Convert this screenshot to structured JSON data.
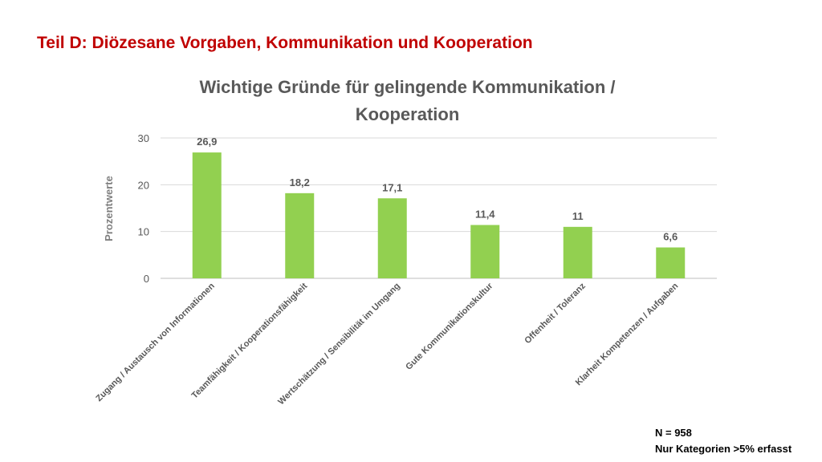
{
  "slide_title": "Teil D: Diözesane Vorgaben, Kommunikation und Kooperation",
  "chart_data": {
    "type": "bar",
    "title_line1": "Wichtige Gründe für gelingende Kommunikation /",
    "title_line2": "Kooperation",
    "ylabel": "Prozentwerte",
    "xlabel": "",
    "ylim": [
      0,
      30
    ],
    "yticks": [
      0,
      10,
      20,
      30
    ],
    "grid": true,
    "bar_color": "#92d050",
    "categories": [
      "Zugang / Austausch von Informationen",
      "Teamfähigkeit / Kooperationsfähigkeit",
      "Wertschätzung / Sensibilität im Umgang",
      "Gute Kommunikationskultur",
      "Offenheit / Toleranz",
      "Klarheit Kompetenzen / Aufgaben"
    ],
    "values": [
      26.9,
      18.2,
      17.1,
      11.4,
      11,
      6.6
    ],
    "data_labels": [
      "26,9",
      "18,2",
      "17,1",
      "11,4",
      "11",
      "6,6"
    ]
  },
  "footnote": {
    "line1": "N = 958",
    "line2": "Nur Kategorien >5% erfasst"
  }
}
